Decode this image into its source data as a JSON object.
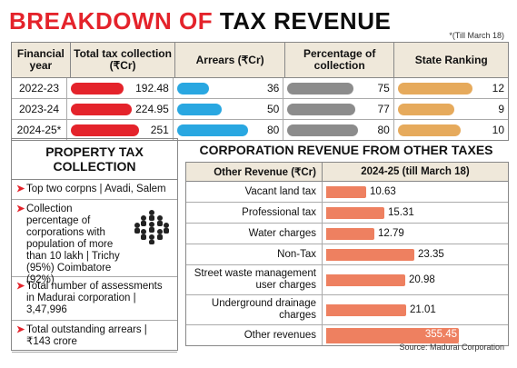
{
  "title": {
    "part1": "BREAKDOWN OF",
    "part2": "TAX REVENUE"
  },
  "note": "*(Till March 18)",
  "table": {
    "headers": [
      "Financial year",
      "Total tax collection (₹Cr)",
      "Arrears (₹Cr)",
      "Percentage of collection",
      "State Ranking"
    ],
    "rows": [
      {
        "year": "2022-23",
        "total": "192.48",
        "arrears": "36",
        "pct": "75",
        "rank": "12"
      },
      {
        "year": "2023-24",
        "total": "224.95",
        "arrears": "50",
        "pct": "77",
        "rank": "9"
      },
      {
        "year": "2024-25*",
        "total": "251",
        "arrears": "80",
        "pct": "80",
        "rank": "10"
      }
    ]
  },
  "property": {
    "title": "PROPERTY TAX COLLECTION",
    "items": [
      "Top two corpns | Avadi, Salem",
      "Collection percentage of corporations with population of more than 10 lakh | Trichy (95%) Coimbatore (92%)",
      "Total number of assessments in Madurai corporation | 3,47,996",
      "Total outstanding arrears | ₹143 crore"
    ]
  },
  "corp": {
    "title": "CORPORATION REVENUE FROM OTHER TAXES",
    "col1": "Other Revenue (₹Cr)",
    "col2": "2024-25 (till March 18)"
  },
  "source": "Source: Madurai Corporation",
  "colors": {
    "red": "#e4232b",
    "blue": "#29a7e1",
    "gray": "#8c8c8c",
    "tan": "#e6aa5c",
    "salmon": "#ee8060"
  },
  "chart_data": [
    {
      "type": "bar",
      "title": "BREAKDOWN OF TAX REVENUE",
      "categories": [
        "2022-23",
        "2023-24",
        "2024-25*"
      ],
      "series": [
        {
          "name": "Total tax collection (₹Cr)",
          "values": [
            192.48,
            224.95,
            251
          ]
        },
        {
          "name": "Arrears (₹Cr)",
          "values": [
            36,
            50,
            80
          ]
        },
        {
          "name": "Percentage of collection",
          "values": [
            75,
            77,
            80
          ]
        },
        {
          "name": "State Ranking",
          "values": [
            12,
            9,
            10
          ]
        }
      ]
    },
    {
      "type": "bar",
      "title": "CORPORATION REVENUE FROM OTHER TAXES",
      "categories": [
        "Vacant land tax",
        "Professional tax",
        "Water charges",
        "Non-Tax",
        "Street waste management user charges",
        "Underground drainage charges",
        "Other revenues"
      ],
      "values": [
        10.63,
        15.31,
        12.79,
        23.35,
        20.98,
        21.01,
        355.45
      ],
      "xlabel": "2024-25 (till March 18)",
      "ylabel": "Other Revenue (₹Cr)"
    }
  ]
}
